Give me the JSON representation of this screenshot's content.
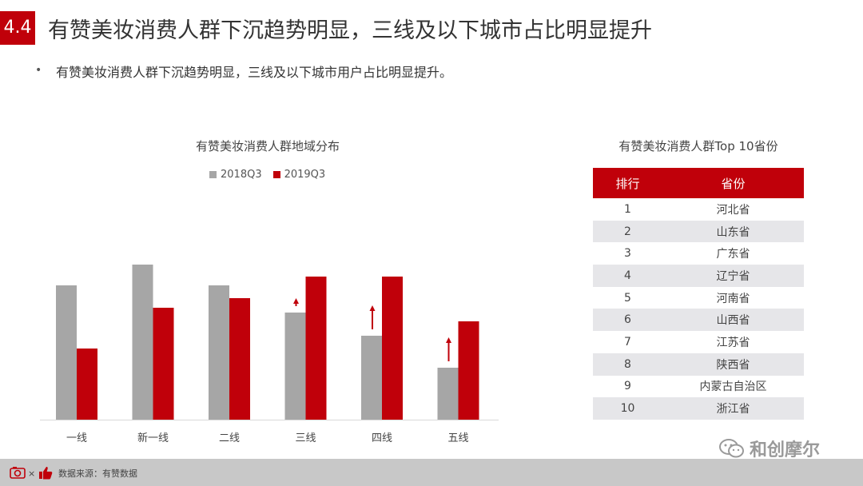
{
  "header": {
    "section_number": "4.4",
    "title": "有赞美妆消费人群下沉趋势明显，三线及以下城市占比明显提升"
  },
  "bullet": {
    "text": "有赞美妆消费人群下沉趋势明显，三线及以下城市用户占比明显提升。"
  },
  "colors": {
    "accent": "#c0000a",
    "series_2018": "#a6a6a6",
    "series_2019": "#c0000a"
  },
  "chart_data": {
    "type": "bar",
    "title": "有赞美妆消费人群地域分布",
    "categories": [
      "一线",
      "新一线",
      "二线",
      "三线",
      "四线",
      "五线"
    ],
    "series": [
      {
        "name": "2018Q3",
        "values": [
          168,
          194,
          168,
          134,
          105,
          65
        ]
      },
      {
        "name": "2019Q3",
        "values": [
          89,
          140,
          152,
          179,
          179,
          123
        ]
      }
    ],
    "up_arrows": [
      false,
      false,
      false,
      true,
      true,
      true
    ],
    "ylim": [
      0,
      200
    ],
    "grid": false,
    "y_axis_visible": false,
    "legend_position": "top"
  },
  "table": {
    "title": "有赞美妆消费人群Top 10省份",
    "headers": [
      "排行",
      "省份"
    ],
    "rows": [
      [
        "1",
        "河北省"
      ],
      [
        "2",
        "山东省"
      ],
      [
        "3",
        "广东省"
      ],
      [
        "4",
        "辽宁省"
      ],
      [
        "5",
        "河南省"
      ],
      [
        "6",
        "山西省"
      ],
      [
        "7",
        "江苏省"
      ],
      [
        "8",
        "陕西省"
      ],
      [
        "9",
        "内蒙古自治区"
      ],
      [
        "10",
        "浙江省"
      ]
    ]
  },
  "watermark": {
    "text": "和创摩尔",
    "icon": "wechat-icon"
  },
  "footer": {
    "logo_icons": [
      "camera-icon",
      "thumbs-up-icon"
    ],
    "separator": "×",
    "source_text": "数据来源：有赞数据"
  }
}
